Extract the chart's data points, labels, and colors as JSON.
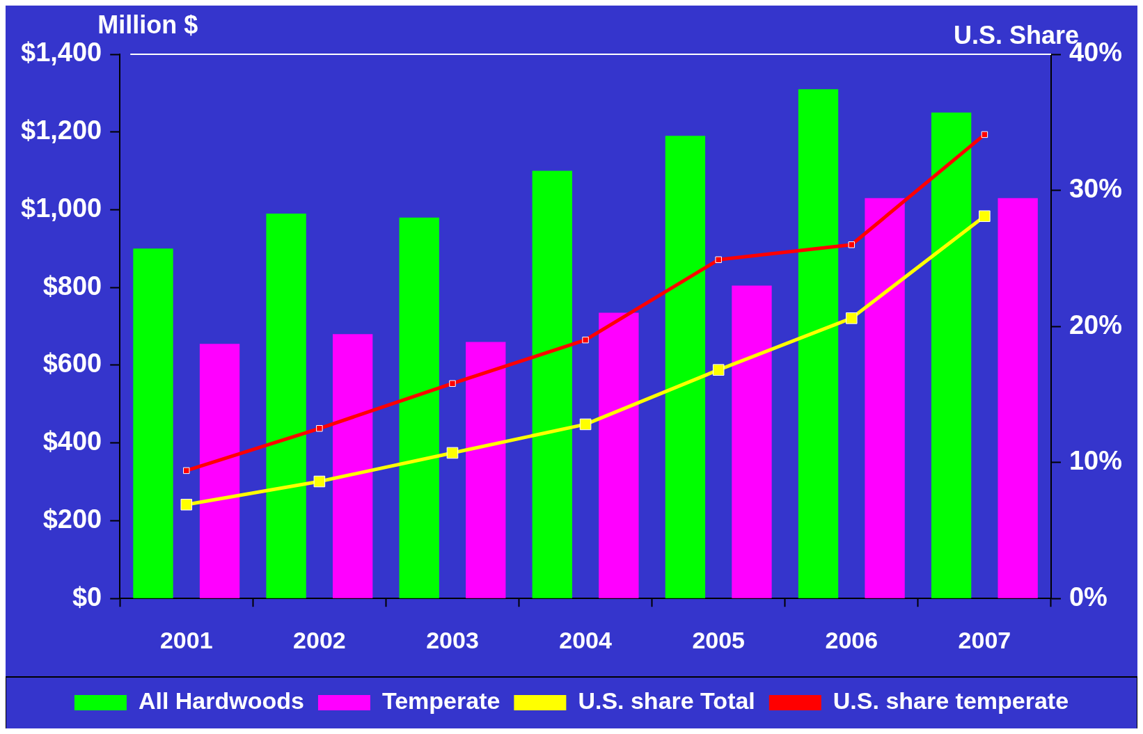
{
  "chart_data": {
    "type": "bar",
    "ylabel": "Million $",
    "y2label": "U.S. Share",
    "categories": [
      "2001",
      "2002",
      "2003",
      "2004",
      "2005",
      "2006",
      "2007"
    ],
    "series": [
      {
        "name": "All Hardwoods",
        "color": "#00ff00",
        "values": [
          900,
          990,
          980,
          1100,
          1190,
          1310,
          1250
        ]
      },
      {
        "name": "Temperate",
        "color": "#ff00ff",
        "values": [
          655,
          680,
          660,
          735,
          805,
          1030,
          1030
        ]
      },
      {
        "name": "U.S. share Total",
        "type": "line",
        "axis": "y2",
        "color": "#ffff00",
        "values": [
          6.9,
          8.6,
          10.7,
          12.8,
          16.8,
          20.6,
          28.1
        ]
      },
      {
        "name": "U.S. share temperate",
        "type": "line",
        "axis": "y2",
        "color": "#ff0000",
        "values": [
          9.4,
          12.5,
          15.8,
          19.0,
          24.9,
          26.0,
          34.1
        ]
      }
    ],
    "ylim": [
      0,
      1400
    ],
    "yticks": [
      {
        "value": 0,
        "label": "$0"
      },
      {
        "value": 200,
        "label": "$200"
      },
      {
        "value": 400,
        "label": "$400"
      },
      {
        "value": 600,
        "label": "$600"
      },
      {
        "value": 800,
        "label": "$800"
      },
      {
        "value": 1000,
        "label": "$1,000"
      },
      {
        "value": 1200,
        "label": "$1,200"
      },
      {
        "value": 1400,
        "label": "$1,400"
      }
    ],
    "y2lim": [
      0,
      40
    ],
    "y2ticks": [
      {
        "value": 0,
        "label": "0%"
      },
      {
        "value": 10,
        "label": "10%"
      },
      {
        "value": 20,
        "label": "20%"
      },
      {
        "value": 30,
        "label": "30%"
      },
      {
        "value": 40,
        "label": "40%"
      }
    ],
    "grid": false,
    "legend": "bottom",
    "marker": "square",
    "line_style": "solid"
  }
}
